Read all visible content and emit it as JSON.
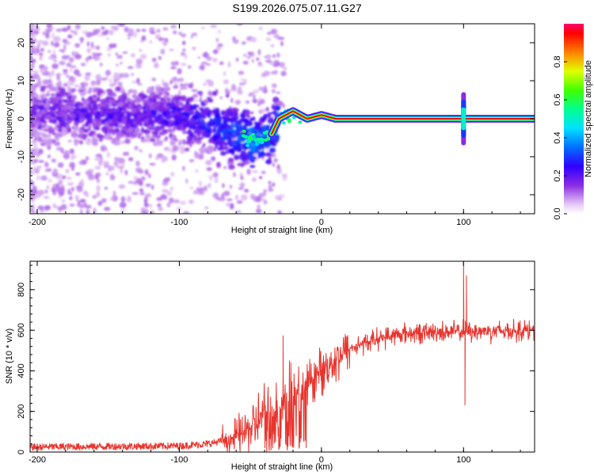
{
  "title": "S199.2026.075.07.11.G27",
  "chart_data": [
    {
      "type": "heatmap",
      "name": "spectrogram",
      "xlabel": "Height of straight line (km)",
      "ylabel": "Frequency (Hz)",
      "xlim": [
        -205,
        150
      ],
      "ylim": [
        -25,
        25
      ],
      "xticks": [
        -200,
        -100,
        0,
        100
      ],
      "yticks": [
        -20,
        -10,
        0,
        10,
        20
      ],
      "colorbar": {
        "label": "Normalized spectral amplitude",
        "range": [
          0,
          1
        ],
        "ticks": [
          0.0,
          0.2,
          0.4,
          0.6,
          0.8
        ],
        "tick_labels": [
          "0.0",
          "0.2",
          "0.4",
          "0.6",
          "0.8"
        ]
      },
      "ridge": {
        "description_points": [
          {
            "x": -200,
            "f": 2,
            "amp": 0.15
          },
          {
            "x": -150,
            "f": 1,
            "amp": 0.18
          },
          {
            "x": -100,
            "f": 1,
            "amp": 0.2
          },
          {
            "x": -80,
            "f": -1,
            "amp": 0.25
          },
          {
            "x": -60,
            "f": -4,
            "amp": 0.3
          },
          {
            "x": -45,
            "f": -6,
            "amp": 0.35
          },
          {
            "x": -35,
            "f": -4,
            "amp": 0.3
          },
          {
            "x": -30,
            "f": 0,
            "amp": 0.35
          },
          {
            "x": -20,
            "f": 2,
            "amp": 0.45
          },
          {
            "x": -10,
            "f": 0,
            "amp": 0.7
          },
          {
            "x": 0,
            "f": 1,
            "amp": 0.6
          },
          {
            "x": 10,
            "f": 0,
            "amp": 0.9
          },
          {
            "x": 100,
            "f": 0,
            "amp": 0.95
          },
          {
            "x": 150,
            "f": 0,
            "amp": 1.0
          }
        ]
      }
    },
    {
      "type": "line",
      "name": "snr",
      "xlabel": "Height of straight line (km)",
      "ylabel": "SNR (10 * v/v)",
      "xlim": [
        -205,
        150
      ],
      "ylim": [
        0,
        940
      ],
      "xticks": [
        -200,
        -100,
        0,
        100
      ],
      "yticks": [
        0,
        200,
        400,
        600,
        800
      ],
      "color": "#e8352e",
      "trend": [
        {
          "x": -205,
          "y": 25
        },
        {
          "x": -100,
          "y": 30
        },
        {
          "x": -80,
          "y": 40
        },
        {
          "x": -60,
          "y": 70
        },
        {
          "x": -50,
          "y": 120
        },
        {
          "x": -40,
          "y": 180
        },
        {
          "x": -30,
          "y": 220
        },
        {
          "x": -20,
          "y": 260
        },
        {
          "x": -10,
          "y": 330
        },
        {
          "x": 0,
          "y": 400
        },
        {
          "x": 10,
          "y": 460
        },
        {
          "x": 20,
          "y": 510
        },
        {
          "x": 40,
          "y": 560
        },
        {
          "x": 60,
          "y": 585
        },
        {
          "x": 100,
          "y": 595
        },
        {
          "x": 150,
          "y": 600
        }
      ],
      "spikes": [
        {
          "x": -27,
          "y": 575
        },
        {
          "x": 100,
          "y": 940
        },
        {
          "x": 102,
          "y": 870
        },
        {
          "x": 101,
          "y": 230
        }
      ]
    }
  ]
}
